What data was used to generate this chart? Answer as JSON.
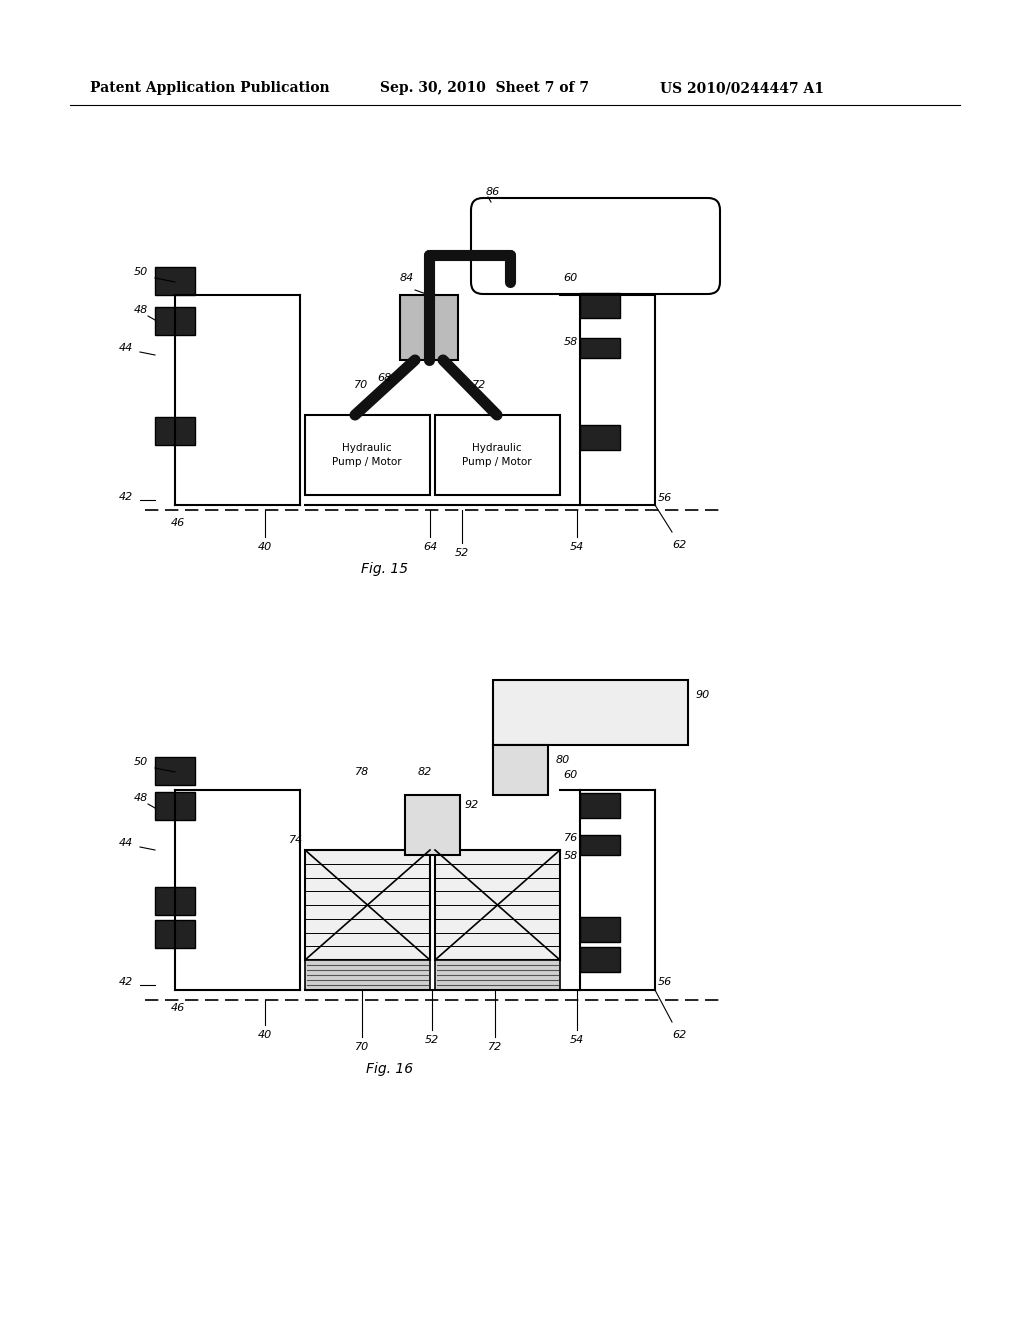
{
  "header_left": "Patent Application Publication",
  "header_mid": "Sep. 30, 2010  Sheet 7 of 7",
  "header_right": "US 2010/0244447 A1",
  "fig15_label": "Fig. 15",
  "fig16_label": "Fig. 16",
  "bg_color": "#ffffff",
  "line_color": "#000000",
  "dark_color": "#1a1a1a"
}
